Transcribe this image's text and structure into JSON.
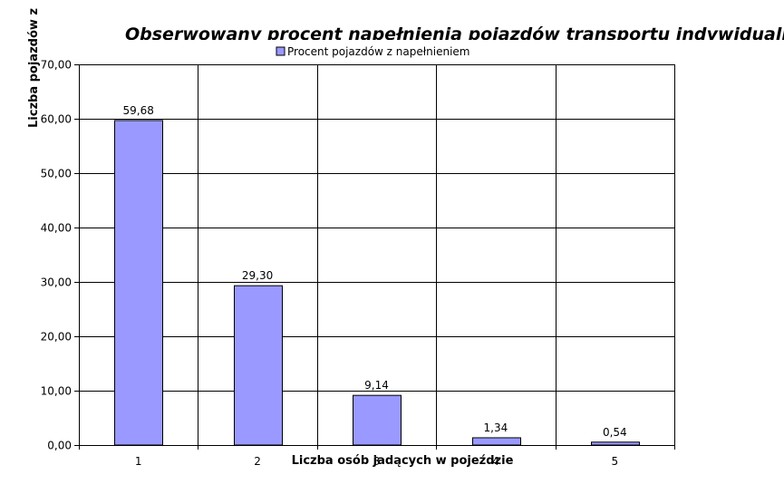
{
  "chart_data": {
    "type": "bar",
    "title": "Obserwowany procent napełnienia pojazdów transportu indywidualnego",
    "xlabel": "Liczba osób jadących w pojeździe",
    "ylabel": "Liczba pojazdów z",
    "categories": [
      "1",
      "2",
      "3",
      "4",
      "5"
    ],
    "series": [
      {
        "name": "Procent pojazdów z napełnieniem",
        "values": [
          59.68,
          29.3,
          9.14,
          1.34,
          0.54
        ],
        "value_labels": [
          "59,68",
          "29,30",
          "9,14",
          "1,34",
          "0,54"
        ],
        "color": "#9999ff"
      }
    ],
    "ylim": [
      0,
      70
    ],
    "yticks": [
      0,
      10,
      20,
      30,
      40,
      50,
      60,
      70
    ],
    "ytick_labels": [
      "0,00",
      "10,00",
      "20,00",
      "30,00",
      "40,00",
      "50,00",
      "60,00",
      "70,00"
    ],
    "grid": true,
    "legend_position": "top-center"
  }
}
